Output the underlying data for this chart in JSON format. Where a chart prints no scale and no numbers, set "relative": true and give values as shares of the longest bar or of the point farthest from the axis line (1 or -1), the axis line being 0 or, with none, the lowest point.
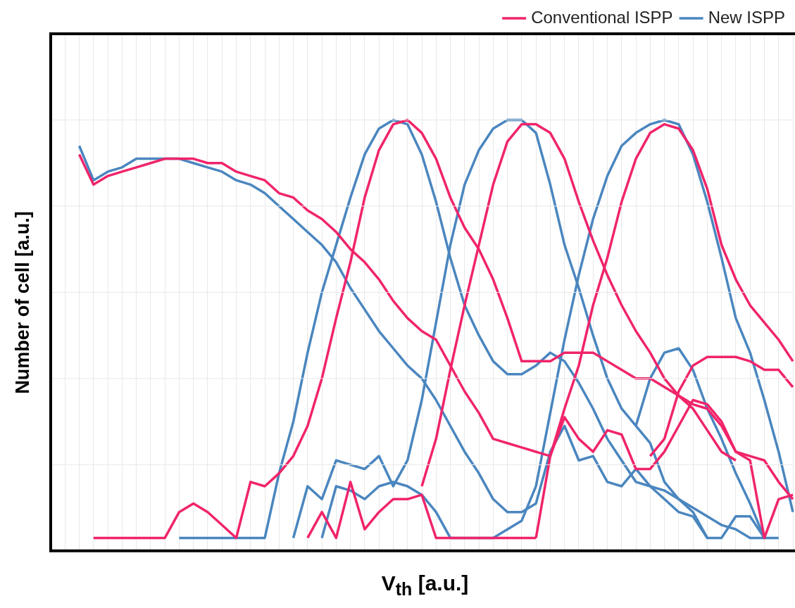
{
  "chart_data": {
    "type": "line",
    "xlabel": "V$_{th}$ [a.u.]",
    "ylabel": "Number of cell [a.u.]",
    "relative": true,
    "grid": true,
    "legend": "top right",
    "marker": "none",
    "line_style": "solid",
    "categories": [
      null,
      null,
      null,
      null,
      null,
      null,
      null,
      null,
      null,
      null,
      null,
      null,
      null,
      null,
      null,
      null,
      null,
      null,
      null,
      null,
      null,
      null,
      null,
      null,
      null,
      null,
      null,
      null,
      null,
      null,
      null,
      null,
      null,
      null,
      null,
      null,
      null,
      null,
      null,
      null,
      null,
      null,
      null,
      null,
      null,
      null,
      null,
      null,
      null,
      null,
      null,
      null,
      null
    ],
    "series": [
      {
        "name": "Conventional ISPP",
        "color": "#f0246a",
        "values": [
          null,
          null,
          0.92,
          0.85,
          0.87,
          0.88,
          0.89,
          0.9,
          0.91,
          0.91,
          0.91,
          0.9,
          0.9,
          0.88,
          0.87,
          0.86,
          0.83,
          0.82,
          0.79,
          0.77,
          0.74,
          0.7,
          0.67,
          0.63,
          0.58,
          0.54,
          0.51,
          0.49,
          0.43,
          0.37,
          0.32,
          0.26,
          0.25,
          0.24,
          0.23,
          0.22,
          0.31,
          0.26,
          0.23,
          0.28,
          0.27,
          0.19,
          0.19,
          0.23,
          0.29,
          0.35,
          0.34,
          0.3,
          0.23,
          0.21,
          0.03,
          0.12,
          0.13
        ]
      },
      {
        "color": "#f0246a",
        "values": [
          null,
          null,
          null,
          0.03,
          0.03,
          0.03,
          0.03,
          0.03,
          0.03,
          0.09,
          0.11,
          0.09,
          0.06,
          0.03,
          0.16,
          0.15,
          0.18,
          0.22,
          0.29,
          0.4,
          0.54,
          0.67,
          0.82,
          0.93,
          0.99,
          1.0,
          0.97,
          0.91,
          0.82,
          0.75,
          0.7,
          0.63,
          0.54,
          0.44,
          0.44,
          0.44,
          0.46,
          0.46,
          0.46,
          0.44,
          0.42,
          0.4,
          0.4,
          0.38,
          0.36,
          0.33,
          0.28,
          0.23,
          0.21,
          null,
          null,
          null,
          null
        ]
      },
      {
        "color": "#f0246a",
        "values": [
          null,
          null,
          null,
          null,
          null,
          null,
          null,
          null,
          null,
          null,
          null,
          null,
          null,
          null,
          null,
          null,
          null,
          null,
          null,
          null,
          null,
          null,
          null,
          null,
          null,
          null,
          0.15,
          0.26,
          0.42,
          0.57,
          0.71,
          0.85,
          0.95,
          0.99,
          0.99,
          0.97,
          0.91,
          0.81,
          0.72,
          0.64,
          0.57,
          0.51,
          0.46,
          0.4,
          0.36,
          0.34,
          0.33,
          0.29,
          0.23,
          0.22,
          0.21,
          0.16,
          0.12
        ]
      },
      {
        "color": "#f0246a",
        "values": [
          null,
          null,
          null,
          null,
          null,
          null,
          null,
          null,
          null,
          null,
          null,
          null,
          null,
          null,
          null,
          null,
          null,
          null,
          null,
          null,
          null,
          null,
          null,
          null,
          null,
          null,
          null,
          null,
          null,
          null,
          null,
          null,
          null,
          null,
          0.03,
          0.22,
          0.33,
          0.43,
          0.57,
          0.68,
          0.81,
          0.91,
          0.97,
          0.99,
          0.98,
          0.93,
          0.84,
          0.71,
          0.63,
          0.57,
          0.53,
          0.49,
          0.44
        ]
      },
      {
        "color": "#f0246a",
        "values": [
          null,
          null,
          null,
          null,
          null,
          null,
          null,
          null,
          null,
          null,
          null,
          null,
          null,
          null,
          null,
          null,
          null,
          null,
          0.03,
          0.09,
          0.03,
          0.16,
          0.05,
          0.09,
          0.12,
          0.12,
          0.13,
          0.03,
          0.03,
          0.03,
          0.03,
          0.03,
          0.03,
          0.03,
          0.03,
          null,
          null,
          null,
          null,
          null,
          null,
          null,
          0.22,
          0.26,
          0.37,
          0.43,
          0.45,
          0.45,
          0.45,
          0.44,
          0.42,
          0.42,
          0.38
        ]
      },
      {
        "name": "New ISPP",
        "color": "#4a86bf",
        "values": [
          null,
          null,
          0.94,
          0.86,
          0.88,
          0.89,
          0.91,
          0.91,
          0.91,
          0.91,
          0.9,
          0.89,
          0.88,
          0.86,
          0.85,
          0.83,
          0.8,
          0.77,
          0.74,
          0.71,
          0.67,
          0.61,
          0.56,
          0.51,
          0.47,
          0.43,
          0.4,
          0.35,
          0.29,
          0.23,
          0.18,
          0.12,
          0.09,
          0.09,
          0.11,
          0.23,
          0.29,
          0.21,
          0.22,
          0.16,
          0.15,
          0.19,
          0.15,
          0.12,
          0.09,
          0.08,
          0.03,
          0.03,
          0.08,
          0.08,
          0.03,
          0.03,
          null
        ]
      },
      {
        "color": "#4a86bf",
        "values": [
          null,
          null,
          null,
          null,
          null,
          null,
          null,
          null,
          null,
          0.03,
          0.03,
          0.03,
          0.03,
          0.03,
          0.03,
          0.03,
          0.18,
          0.3,
          0.46,
          0.6,
          0.71,
          0.82,
          0.92,
          0.98,
          1.0,
          0.99,
          0.92,
          0.81,
          0.68,
          0.57,
          0.5,
          0.44,
          0.41,
          0.41,
          0.43,
          0.46,
          0.44,
          0.39,
          0.33,
          0.26,
          0.21,
          0.16,
          0.15,
          0.14,
          0.12,
          0.1,
          0.08,
          0.06,
          0.05,
          0.03,
          0.03,
          null,
          null
        ]
      },
      {
        "color": "#4a86bf",
        "values": [
          null,
          null,
          null,
          null,
          null,
          null,
          null,
          null,
          null,
          null,
          null,
          null,
          null,
          null,
          null,
          null,
          null,
          0.03,
          0.15,
          0.12,
          0.21,
          0.2,
          0.19,
          0.22,
          0.15,
          0.21,
          0.35,
          0.53,
          0.71,
          0.85,
          0.93,
          0.98,
          1.0,
          1.0,
          0.97,
          0.85,
          0.71,
          0.61,
          0.5,
          0.4,
          0.33,
          0.29,
          0.25,
          0.16,
          0.12,
          0.09,
          0.03,
          null,
          null,
          null,
          null,
          null,
          null
        ]
      },
      {
        "color": "#4a86bf",
        "values": [
          null,
          null,
          null,
          null,
          null,
          null,
          null,
          null,
          null,
          null,
          null,
          null,
          null,
          null,
          null,
          null,
          null,
          null,
          null,
          0.03,
          0.15,
          0.14,
          0.12,
          0.15,
          0.16,
          0.15,
          0.13,
          0.09,
          0.03,
          0.03,
          0.03,
          0.03,
          0.05,
          0.07,
          0.15,
          0.32,
          0.49,
          0.64,
          0.77,
          0.87,
          0.94,
          0.97,
          0.99,
          1.0,
          0.99,
          0.92,
          0.81,
          0.68,
          0.54,
          0.46,
          0.35,
          0.23,
          0.09
        ]
      },
      {
        "color": "#4a86bf",
        "values": [
          null,
          null,
          null,
          null,
          null,
          null,
          null,
          null,
          null,
          null,
          null,
          null,
          null,
          null,
          null,
          null,
          null,
          null,
          null,
          null,
          null,
          null,
          null,
          null,
          null,
          null,
          null,
          null,
          null,
          null,
          null,
          null,
          null,
          null,
          null,
          null,
          null,
          null,
          null,
          null,
          null,
          0.29,
          0.4,
          0.46,
          0.47,
          0.42,
          0.33,
          0.26,
          0.18,
          0.11,
          0.03,
          null,
          null
        ]
      }
    ]
  }
}
